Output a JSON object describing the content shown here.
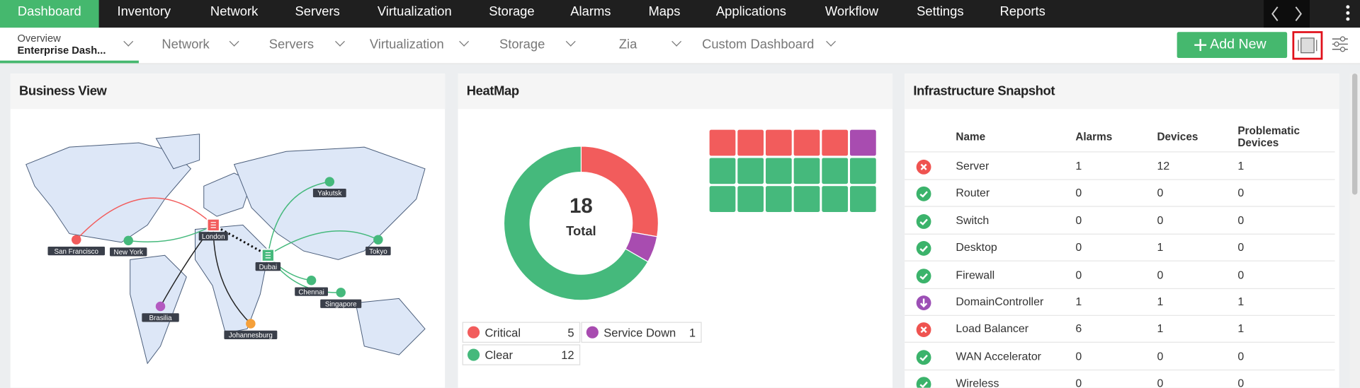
{
  "nav": {
    "items": [
      "Dashboard",
      "Inventory",
      "Network",
      "Servers",
      "Virtualization",
      "Storage",
      "Alarms",
      "Maps",
      "Applications",
      "Workflow",
      "Settings",
      "Reports"
    ]
  },
  "subnav": {
    "overview_label": "Overview",
    "overview_value": "Enterprise Dash...",
    "tabs": [
      "Network",
      "Servers",
      "Virtualization",
      "Storage",
      "Zia",
      "Custom Dashboard"
    ],
    "add_button": "Add New"
  },
  "business_view": {
    "title": "Business View",
    "nodes": [
      {
        "label": "San Francisco",
        "color": "#f25c5c"
      },
      {
        "label": "New York",
        "color": "#45b97c"
      },
      {
        "label": "London",
        "color": "#f25c5c"
      },
      {
        "label": "Dubai",
        "color": "#45b97c"
      },
      {
        "label": "Yakutsk",
        "color": "#45b97c"
      },
      {
        "label": "Tokyo",
        "color": "#45b97c"
      },
      {
        "label": "Chennai",
        "color": "#45b97c"
      },
      {
        "label": "Singapore",
        "color": "#45b97c"
      },
      {
        "label": "Brasilia",
        "color": "#b35ac0"
      },
      {
        "label": "Johannesburg",
        "color": "#f5a03a"
      }
    ]
  },
  "heatmap": {
    "title": "HeatMap",
    "total": 18,
    "total_label": "Total",
    "legend": [
      {
        "label": "Critical",
        "count": 5,
        "color": "#f25c5c"
      },
      {
        "label": "Service Down",
        "count": 1,
        "color": "#a84cb0"
      },
      {
        "label": "Clear",
        "count": 12,
        "color": "#45b97c"
      }
    ]
  },
  "infrastructure": {
    "title": "Infrastructure Snapshot",
    "columns": [
      "Name",
      "Alarms",
      "Devices",
      "Problematic Devices"
    ],
    "rows": [
      [
        "Server",
        1,
        12,
        1
      ],
      [
        "Router",
        0,
        0,
        0
      ],
      [
        "Switch",
        0,
        0,
        0
      ],
      [
        "Desktop",
        0,
        1,
        0
      ],
      [
        "Firewall",
        0,
        0,
        0
      ],
      [
        "DomainController",
        1,
        1,
        1
      ],
      [
        "Load Balancer",
        6,
        1,
        1
      ],
      [
        "WAN Accelerator",
        0,
        0,
        0
      ],
      [
        "Wireless",
        0,
        0,
        0
      ]
    ],
    "statuses": [
      "critical",
      "clear",
      "clear",
      "clear",
      "clear",
      "down",
      "critical",
      "clear",
      "clear"
    ]
  }
}
